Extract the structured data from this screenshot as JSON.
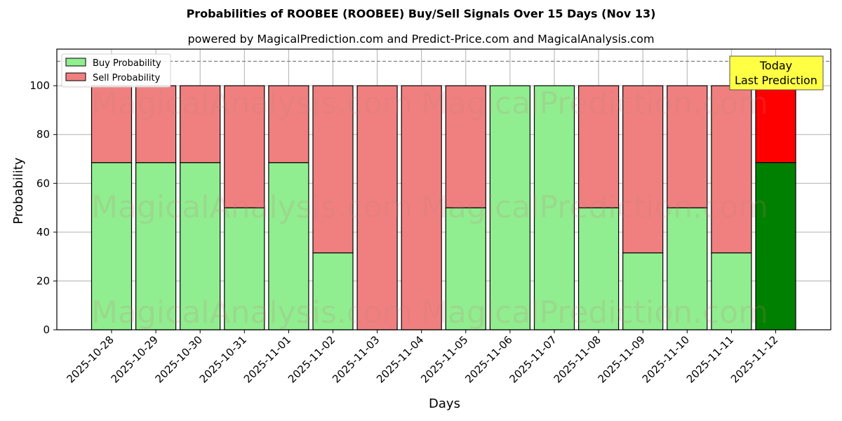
{
  "header": {
    "title": "Probabilities of ROOBEE (ROOBEE) Buy/Sell Signals Over 15 Days (Nov 13)",
    "subtitle": "powered by MagicalPrediction.com and Predict-Price.com and MagicalAnalysis.com"
  },
  "legend": {
    "buy_label": "Buy Probability",
    "sell_label": "Sell Probability"
  },
  "annotation": {
    "line1": "Today",
    "line2": "Last Prediction"
  },
  "watermarks": [
    "MagicalAnalysis.com",
    "MagicalPrediction.com"
  ],
  "colors": {
    "buy": "#90ee90",
    "sell": "#f08080",
    "today_buy": "#008000",
    "today_sell": "#ff0000",
    "annotation_bg": "#ffff44"
  },
  "chart_data": {
    "type": "bar",
    "stacked": true,
    "title": "Probabilities of ROOBEE (ROOBEE) Buy/Sell Signals Over 15 Days (Nov 13)",
    "subtitle": "powered by MagicalPrediction.com and Predict-Price.com and MagicalAnalysis.com",
    "xlabel": "Days",
    "ylabel": "Probability",
    "ylim": [
      0,
      115
    ],
    "yticks": [
      0,
      20,
      40,
      60,
      80,
      100
    ],
    "grid": true,
    "legend_position": "upper left",
    "reference_line": {
      "y": 110,
      "style": "dashed"
    },
    "categories": [
      "2025-10-28",
      "2025-10-29",
      "2025-10-30",
      "2025-10-31",
      "2025-11-01",
      "2025-11-02",
      "2025-11-03",
      "2025-11-04",
      "2025-11-05",
      "2025-11-06",
      "2025-11-07",
      "2025-11-08",
      "2025-11-09",
      "2025-11-10",
      "2025-11-11",
      "2025-11-12"
    ],
    "series": [
      {
        "name": "Buy Probability",
        "values": [
          68.5,
          68.5,
          68.5,
          50,
          68.5,
          31.5,
          0,
          0,
          50,
          100,
          100,
          50,
          31.5,
          50,
          31.5,
          68.5
        ]
      },
      {
        "name": "Sell Probability",
        "values": [
          31.5,
          31.5,
          31.5,
          50,
          31.5,
          68.5,
          100,
          100,
          50,
          0,
          0,
          50,
          68.5,
          50,
          68.5,
          31.5
        ]
      }
    ],
    "annotations": [
      {
        "x": "2025-11-12",
        "text": "Today\nLast Prediction"
      }
    ]
  }
}
